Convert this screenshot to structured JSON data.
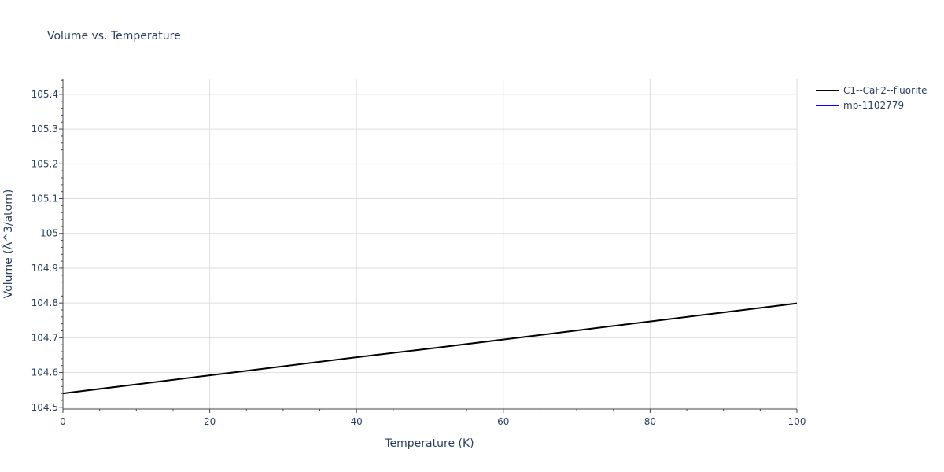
{
  "chart_data": {
    "type": "line",
    "title": "Volume vs. Temperature",
    "xlabel": "Temperature (K)",
    "ylabel": "Volume (Å^3/atom)",
    "xlim": [
      0,
      100
    ],
    "ylim": [
      104.495,
      105.445
    ],
    "x_ticks": [
      0,
      20,
      40,
      60,
      80,
      100
    ],
    "x_tick_labels": [
      "0",
      "20",
      "40",
      "60",
      "80",
      "100"
    ],
    "y_ticks": [
      104.5,
      104.6,
      104.7,
      104.8,
      104.9,
      105.0,
      105.1,
      105.2,
      105.3,
      105.4
    ],
    "y_tick_labels": [
      "104.5",
      "104.6",
      "104.7",
      "104.8",
      "104.9",
      "105",
      "105.1",
      "105.2",
      "105.3",
      "105.4"
    ],
    "grid": true,
    "legend_position": "top-right",
    "series": [
      {
        "name": "C1--CaF2--fluorite",
        "color": "#000000",
        "x": [
          0,
          10,
          20,
          30,
          40,
          50,
          60,
          70,
          80,
          90,
          100
        ],
        "y": [
          104.54,
          104.566,
          104.592,
          104.618,
          104.644,
          104.669,
          104.695,
          104.721,
          104.747,
          104.773,
          104.799
        ]
      },
      {
        "name": "mp-1102779",
        "color": "#0000ff",
        "x": [],
        "y": []
      }
    ]
  }
}
